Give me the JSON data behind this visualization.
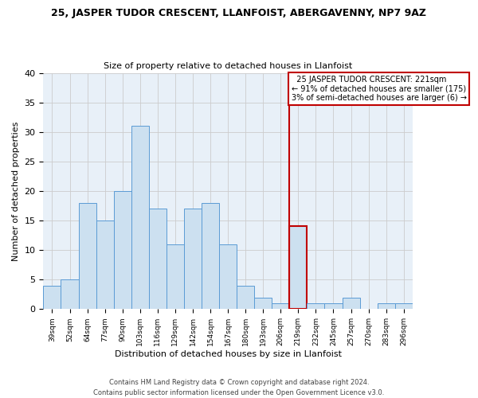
{
  "title": "25, JASPER TUDOR CRESCENT, LLANFOIST, ABERGAVENNY, NP7 9AZ",
  "subtitle": "Size of property relative to detached houses in Llanfoist",
  "xlabel": "Distribution of detached houses by size in Llanfoist",
  "ylabel": "Number of detached properties",
  "footer": "Contains HM Land Registry data © Crown copyright and database right 2024.\nContains public sector information licensed under the Open Government Licence v3.0.",
  "bins": [
    "39sqm",
    "52sqm",
    "64sqm",
    "77sqm",
    "90sqm",
    "103sqm",
    "116sqm",
    "129sqm",
    "142sqm",
    "154sqm",
    "167sqm",
    "180sqm",
    "193sqm",
    "206sqm",
    "219sqm",
    "232sqm",
    "245sqm",
    "257sqm",
    "270sqm",
    "283sqm",
    "296sqm"
  ],
  "values": [
    4,
    5,
    18,
    15,
    20,
    31,
    17,
    11,
    17,
    18,
    11,
    4,
    2,
    1,
    14,
    1,
    1,
    2,
    0,
    1,
    1
  ],
  "highlight_index": 14,
  "bar_color": "#cce0f0",
  "bar_edge_color": "#5b9bd5",
  "highlight_bar_edge_color": "#c00000",
  "vline_color": "#c00000",
  "annotation_text": "  25 JASPER TUDOR CRESCENT: 221sqm\n← 91% of detached houses are smaller (175)\n3% of semi-detached houses are larger (6) →",
  "annotation_box_edge": "#c00000",
  "ylim": [
    0,
    40
  ],
  "yticks": [
    0,
    5,
    10,
    15,
    20,
    25,
    30,
    35,
    40
  ],
  "grid_color": "#cccccc",
  "bg_color": "#e8f0f8"
}
